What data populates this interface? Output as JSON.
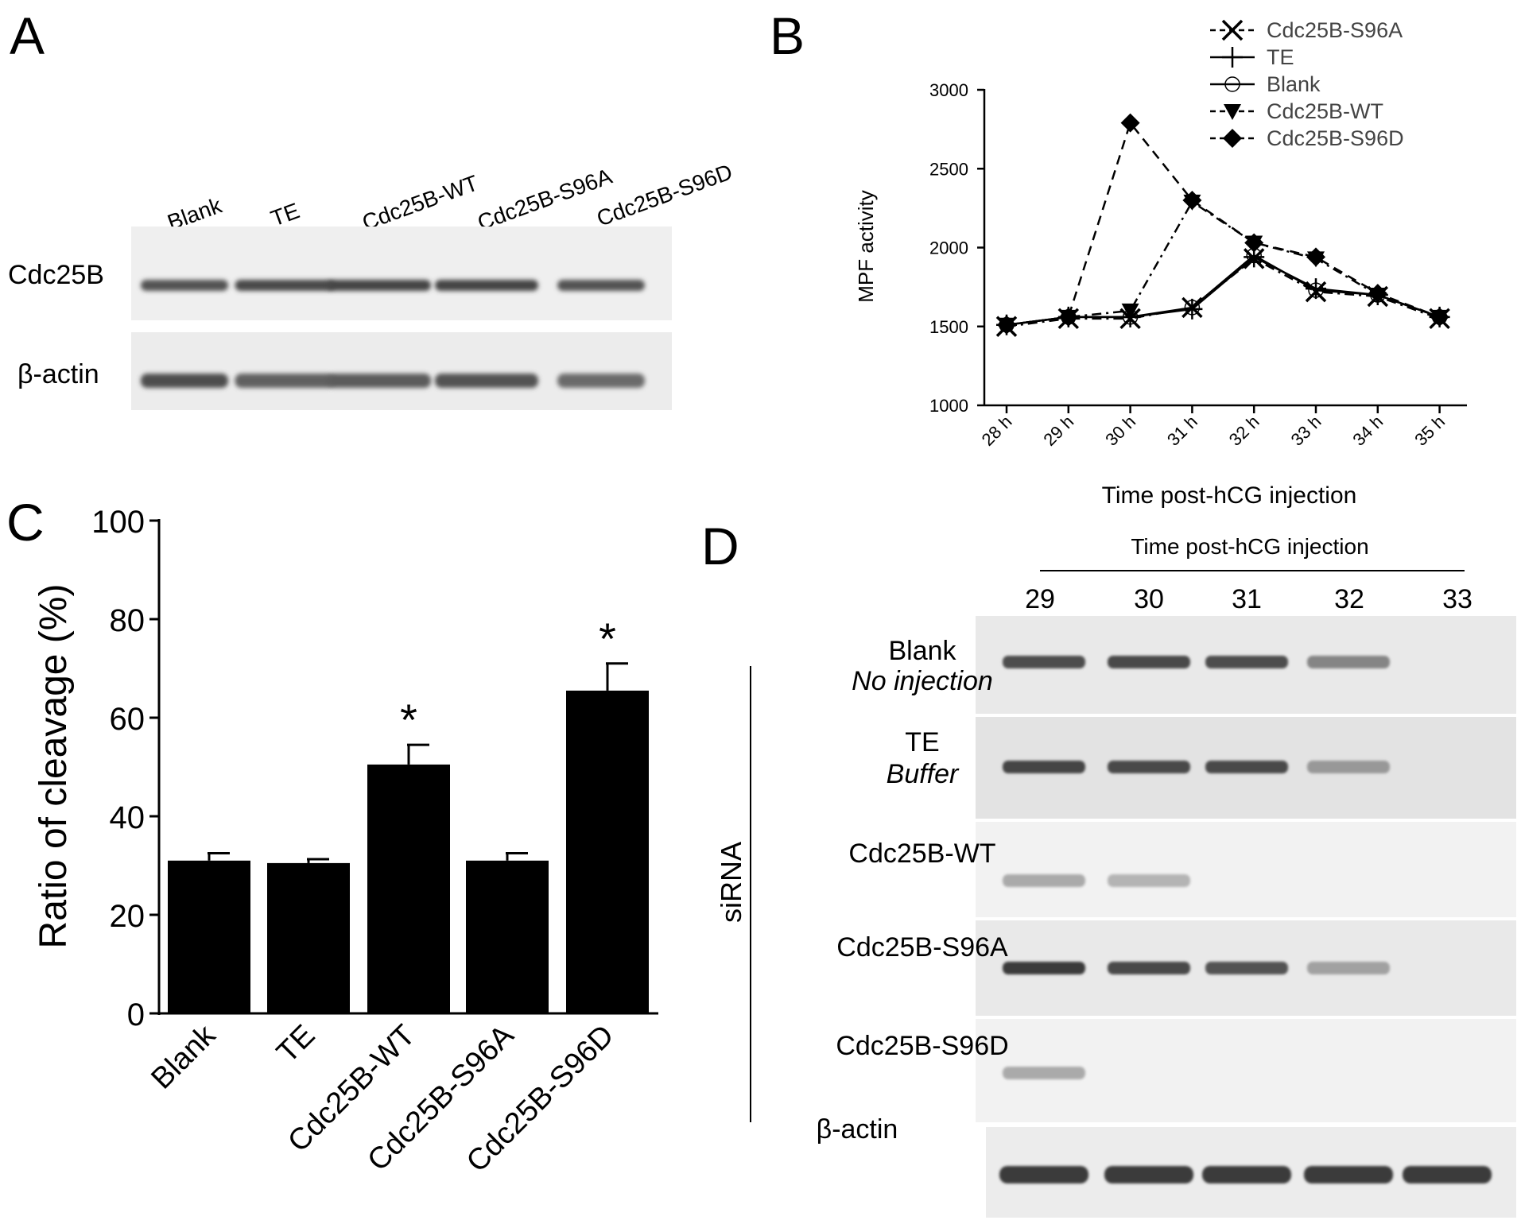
{
  "panel_letters": [
    "A",
    "B",
    "C",
    "D"
  ],
  "panel_a": {
    "lane_labels": [
      "Blank",
      "TE",
      "Cdc25B-WT",
      "Cdc25B-S96A",
      "Cdc25B-S96D"
    ],
    "row_labels": [
      "Cdc25B",
      "β-actin"
    ],
    "band_intensity": {
      "Cdc25B": [
        0.82,
        0.88,
        0.9,
        0.9,
        0.82
      ],
      "β-actin": [
        0.85,
        0.75,
        0.78,
        0.82,
        0.7
      ]
    }
  },
  "panel_b": {
    "ylabel": "MPF activity",
    "xlabel": "Time post-hCG injection",
    "legend": [
      "Cdc25B-S96A",
      "TE",
      "Blank",
      "Cdc25B-WT",
      "Cdc25B-S96D"
    ]
  },
  "panel_c": {
    "significance_marker": "*"
  },
  "panel_d": {
    "header": "Time post-hCG injection",
    "time_labels": [
      "29",
      "30",
      "31",
      "32",
      "33"
    ],
    "row_labels": [
      {
        "name": "Blank",
        "sub": "No injection"
      },
      {
        "name": "TE",
        "sub": "Buffer"
      },
      {
        "name": "Cdc25B-WT",
        "sub": ""
      },
      {
        "name": "Cdc25B-S96A",
        "sub": ""
      },
      {
        "name": "Cdc25B-S96D",
        "sub": ""
      }
    ],
    "sirna_label": "siRNA",
    "actin_label": "β-actin",
    "band_intensity": [
      [
        0.85,
        0.88,
        0.85,
        0.55,
        0.0
      ],
      [
        0.9,
        0.88,
        0.88,
        0.45,
        0.0
      ],
      [
        0.35,
        0.3,
        0.0,
        0.0,
        0.0
      ],
      [
        0.95,
        0.88,
        0.82,
        0.4,
        0.0
      ],
      [
        0.35,
        0.0,
        0.0,
        0.0,
        0.0
      ]
    ],
    "actin_intensity": [
      0.95,
      0.95,
      0.95,
      0.95,
      0.95
    ]
  },
  "chart_data": [
    {
      "type": "line",
      "x": [
        "28 h",
        "29 h",
        "30 h",
        "31 h",
        "32 h",
        "33 h",
        "34 h",
        "35 h"
      ],
      "ylim": [
        1000,
        3000
      ],
      "yticks": [
        1000,
        1500,
        2000,
        2500,
        3000
      ],
      "grid": false,
      "legend_position": "top-right",
      "series": [
        {
          "name": "Cdc25B-S96A",
          "marker": "x",
          "dash": "dashdot",
          "values": [
            1500,
            1550,
            1550,
            1620,
            1930,
            1720,
            1690,
            1550
          ]
        },
        {
          "name": "TE",
          "marker": "plus",
          "dash": "solid",
          "values": [
            1510,
            1560,
            1560,
            1610,
            1940,
            1740,
            1700,
            1560
          ]
        },
        {
          "name": "Blank",
          "marker": "circle-open",
          "dash": "solid",
          "values": [
            1510,
            1560,
            1560,
            1620,
            1950,
            1730,
            1700,
            1560
          ]
        },
        {
          "name": "Cdc25B-WT",
          "marker": "triangle-down",
          "dash": "dashdot",
          "values": [
            1510,
            1560,
            1600,
            2290,
            2030,
            1930,
            1700,
            1560
          ]
        },
        {
          "name": "Cdc25B-S96D",
          "marker": "diamond",
          "dash": "dashed",
          "values": [
            1510,
            1560,
            2790,
            2300,
            2030,
            1940,
            1710,
            1560
          ]
        }
      ]
    },
    {
      "type": "bar",
      "categories": [
        "Blank",
        "TE",
        "Cdc25B-WT",
        "Cdc25B-S96A",
        "Cdc25B-S96D"
      ],
      "values": [
        31,
        30.5,
        50.5,
        31,
        65.5
      ],
      "errors": [
        1.5,
        0.8,
        4,
        1.5,
        5.5
      ],
      "significant": [
        false,
        false,
        true,
        false,
        true
      ],
      "ylabel": "Ratio of cleavage (%)",
      "ylim": [
        0,
        100
      ],
      "yticks": [
        0,
        20,
        40,
        60,
        80,
        100
      ],
      "color": "#000000"
    }
  ]
}
